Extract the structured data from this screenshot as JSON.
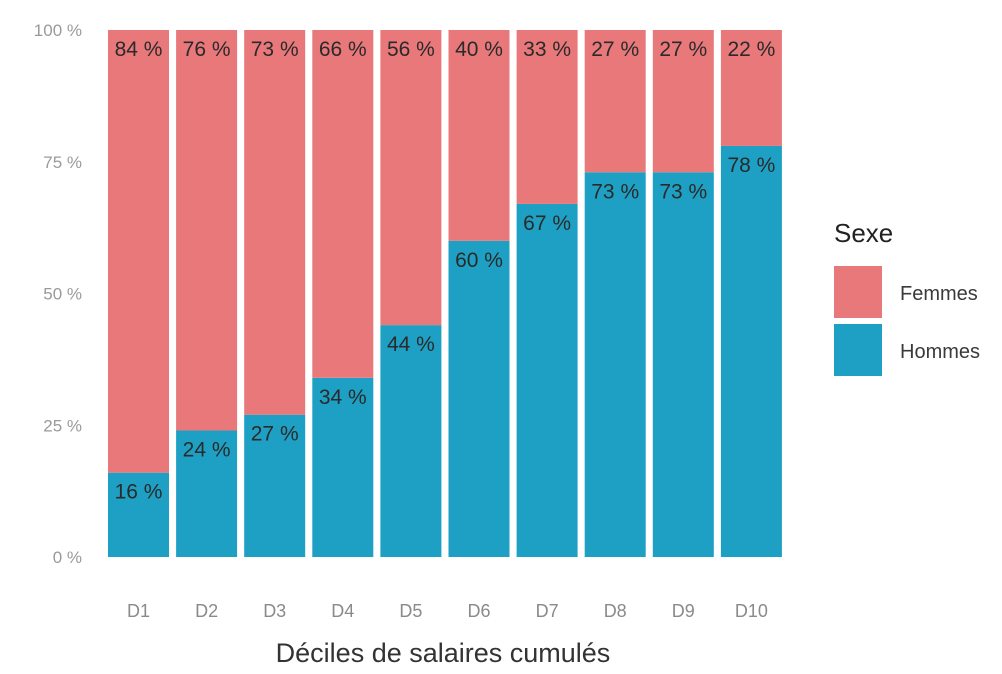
{
  "chart_data": {
    "type": "bar",
    "stacked": true,
    "normalized": true,
    "categories": [
      "D1",
      "D2",
      "D3",
      "D4",
      "D5",
      "D6",
      "D7",
      "D8",
      "D9",
      "D10"
    ],
    "series": [
      {
        "name": "Femmes",
        "color": "#e8787a",
        "values": [
          84,
          76,
          73,
          66,
          56,
          40,
          33,
          27,
          27,
          22
        ],
        "labels": [
          "84 %",
          "76 %",
          "73 %",
          "66 %",
          "56 %",
          "40 %",
          "33 %",
          "27 %",
          "27 %",
          "22 %"
        ]
      },
      {
        "name": "Hommes",
        "color": "#1ea0c4",
        "values": [
          16,
          24,
          27,
          34,
          44,
          60,
          67,
          73,
          73,
          78
        ],
        "labels": [
          "16 %",
          "24 %",
          "27 %",
          "34 %",
          "44 %",
          "60 %",
          "67 %",
          "73 %",
          "73 %",
          "78 %"
        ]
      }
    ],
    "stack_order": [
      "Hommes",
      "Femmes"
    ],
    "xlabel": "Déciles de salaires cumulés",
    "ylabel": "",
    "ylim": [
      0,
      100
    ],
    "yticks": [
      0,
      25,
      50,
      75,
      100
    ],
    "ytick_labels": [
      "0 %",
      "25 %",
      "50 %",
      "75 %",
      "100 %"
    ],
    "legend": {
      "title": "Sexe",
      "placement": "right",
      "entries": [
        "Femmes",
        "Hommes"
      ]
    },
    "grid": false
  }
}
